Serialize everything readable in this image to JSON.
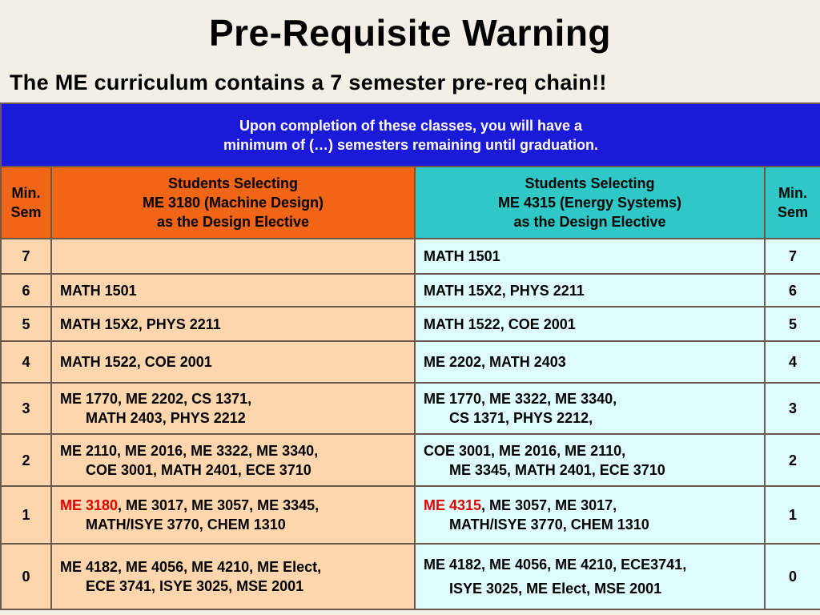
{
  "title": "Pre-Requisite Warning",
  "subtitle": "The ME curriculum contains a 7 semester pre-req chain!!",
  "banner": {
    "line1": "Upon completion of these classes, you will have a",
    "line2": "minimum of (…) semesters remaining until graduation."
  },
  "header": {
    "min_sem_left": [
      "Min.",
      "Sem"
    ],
    "min_sem_right": [
      "Min.",
      "Sem"
    ],
    "col_a": [
      "Students Selecting",
      "ME 3180 (Machine Design)",
      "as the Design Elective"
    ],
    "col_b": [
      "Students Selecting",
      "ME 4315 (Energy Systems)",
      "as the Design Elective"
    ]
  },
  "rows": [
    {
      "sem": "7",
      "a1": "",
      "a2": "",
      "b1": "MATH 1501",
      "b2": ""
    },
    {
      "sem": "6",
      "a1": "MATH 1501",
      "a2": "",
      "b1": "MATH 15X2, PHYS 2211",
      "b2": ""
    },
    {
      "sem": "5",
      "a1": "MATH 15X2, PHYS 2211",
      "a2": "",
      "b1": "MATH 1522, COE 2001",
      "b2": ""
    },
    {
      "sem": "4",
      "a1": "MATH 1522, COE 2001",
      "a2": "",
      "b1": "ME 2202, MATH 2403",
      "b2": ""
    },
    {
      "sem": "3",
      "a1": "ME 1770, ME 2202, CS 1371,",
      "a2": "MATH 2403, PHYS 2212",
      "b1": "ME 1770, ME 3322, ME 3340,",
      "b2": "CS 1371, PHYS 2212,"
    },
    {
      "sem": "2",
      "a1": "ME 2110, ME 2016, ME 3322, ME 3340,",
      "a2": "COE 3001, MATH 2401, ECE 3710",
      "b1": "COE 3001, ME 2016, ME 2110,",
      "b2": "ME 3345, MATH 2401, ECE 3710"
    },
    {
      "sem": "1",
      "a1_hl": "ME 3180",
      "a1": ", ME 3017, ME 3057, ME 3345,",
      "a2": "MATH/ISYE 3770, CHEM 1310",
      "b1_hl": "ME 4315",
      "b1": ", ME 3057, ME 3017,",
      "b2": "MATH/ISYE 3770, CHEM 1310"
    },
    {
      "sem": "0",
      "a1": "ME 4182, ME 4056, ME 4210, ME Elect,",
      "a2": "ECE 3741, ISYE 3025, MSE 2001",
      "b1": "ME 4182, ME 4056, ME 4210, ECE3741,",
      "b2": "ISYE 3025, ME Elect, MSE 2001"
    }
  ]
}
